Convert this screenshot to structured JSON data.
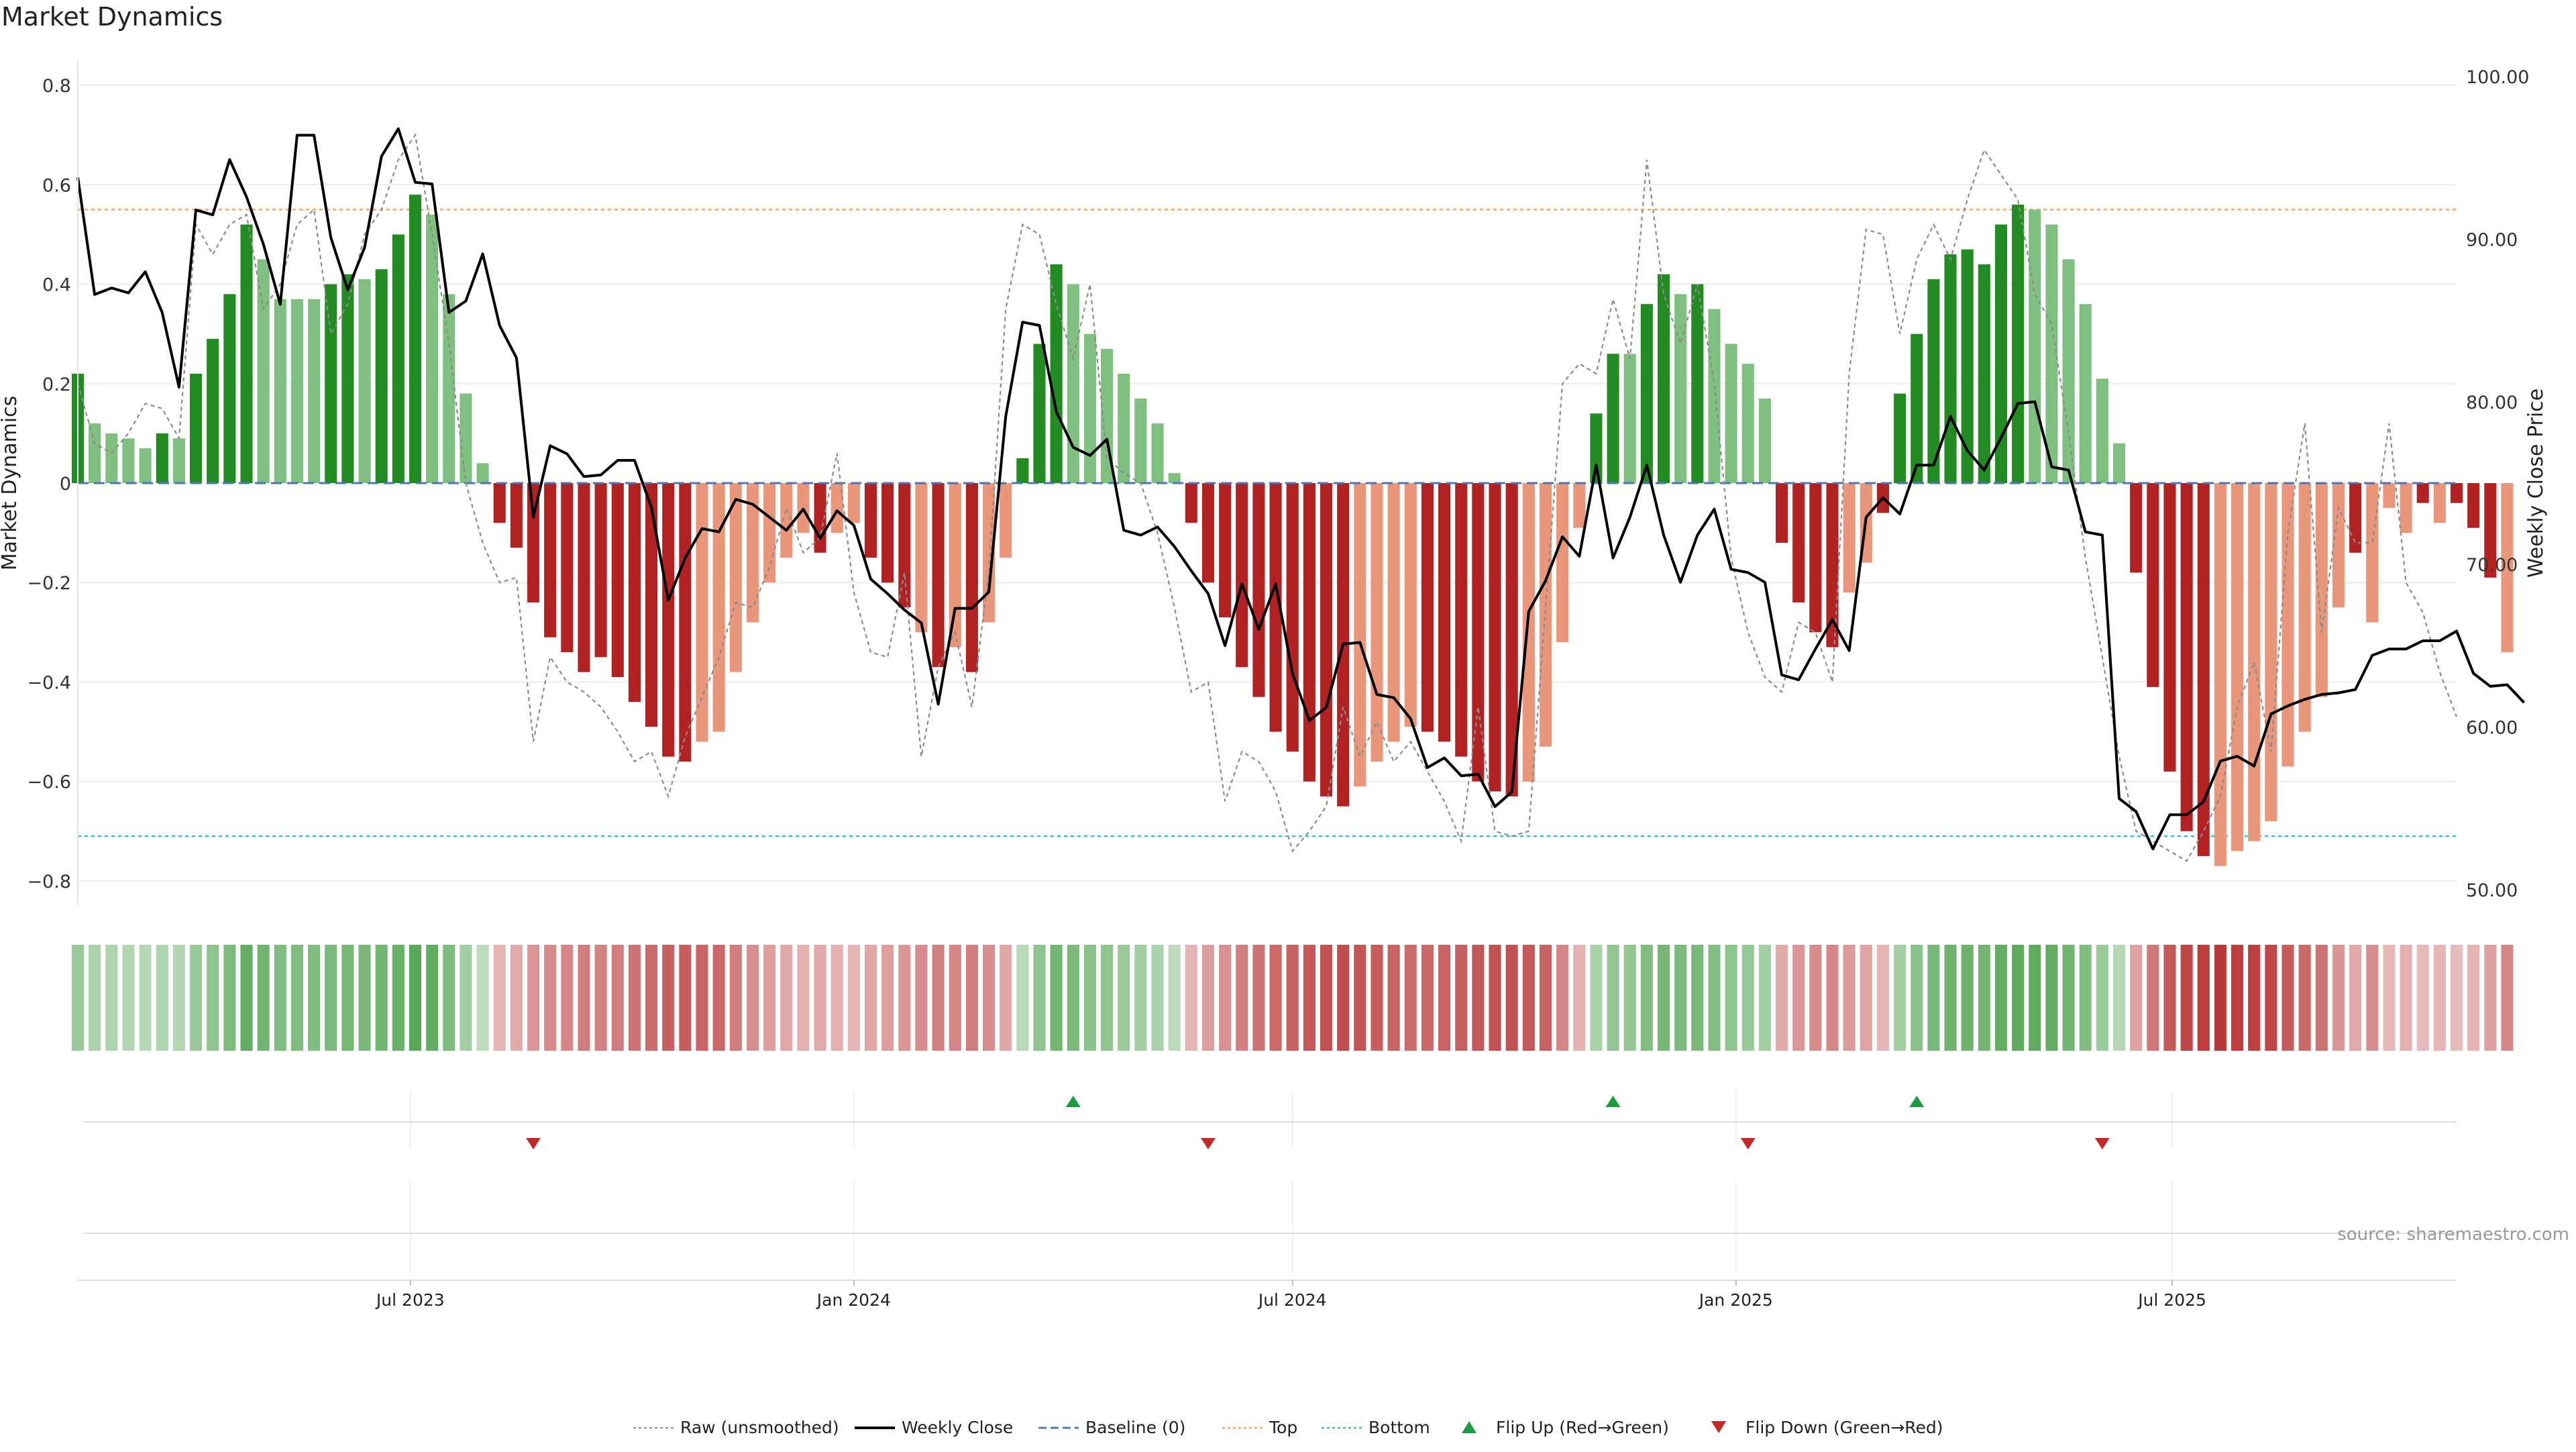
{
  "title": "Market Dynamics",
  "source_note": "source: sharemaestro.com",
  "colors": {
    "strong_green": "#228b22",
    "light_green": "#7fbf7f",
    "strong_red": "#b22222",
    "light_red": "#e9967a",
    "price_line": "#000000",
    "raw_line": "#8c8c8c",
    "baseline": "#4a77b4",
    "top_line": "#f0a868",
    "bottom_line": "#3fbfbf",
    "flip_up": "#1e9a40",
    "flip_down": "#c62828"
  },
  "chart_data": {
    "type": "bar",
    "ylabel": "Market Dynamics",
    "y2label": "Weekly Close Price",
    "ylim": [
      -0.85,
      0.85
    ],
    "y2lim": [
      49,
      101
    ],
    "yticks": [
      "0.8",
      "0.6",
      "0.4",
      "0.2",
      "0",
      "−0.2",
      "−0.4",
      "−0.6",
      "−0.8"
    ],
    "y2ticks": [
      "100.00",
      "90.00",
      "80.00",
      "70.00",
      "60.00",
      "50.00"
    ],
    "xlim": [
      "2023-02-13",
      "2025-10-27"
    ],
    "xticks": [
      {
        "date": "2023-07-01",
        "label": "Jul 2023"
      },
      {
        "date": "2024-01-01",
        "label": "Jan 2024"
      },
      {
        "date": "2024-07-01",
        "label": "Jul 2024"
      },
      {
        "date": "2025-01-01",
        "label": "Jan 2025"
      },
      {
        "date": "2025-07-01",
        "label": "Jul 2025"
      }
    ],
    "week_start": "2023-02-13",
    "top": 0.55,
    "bottom": -0.71,
    "baseline": 0,
    "series_names": {
      "raw": "Raw (unsmoothed)",
      "close": "Weekly Close",
      "baseline": "Baseline (0)",
      "top": "Top",
      "bottom": "Bottom",
      "flip_up": "Flip Up (Red→Green)",
      "flip_down": "Flip Down (Green→Red)"
    },
    "momentum": [
      0.22,
      0.12,
      0.1,
      0.09,
      0.07,
      0.1,
      0.09,
      0.22,
      0.29,
      0.38,
      0.52,
      0.45,
      0.37,
      0.37,
      0.37,
      0.4,
      0.42,
      0.41,
      0.43,
      0.5,
      0.58,
      0.54,
      0.38,
      0.18,
      0.04,
      -0.08,
      -0.13,
      -0.24,
      -0.31,
      -0.34,
      -0.38,
      -0.35,
      -0.39,
      -0.44,
      -0.49,
      -0.55,
      -0.56,
      -0.52,
      -0.5,
      -0.38,
      -0.28,
      -0.2,
      -0.15,
      -0.1,
      -0.14,
      -0.1,
      -0.08,
      -0.15,
      -0.2,
      -0.25,
      -0.3,
      -0.37,
      -0.33,
      -0.38,
      -0.28,
      -0.15,
      0.05,
      0.28,
      0.44,
      0.4,
      0.3,
      0.27,
      0.22,
      0.17,
      0.12,
      0.02,
      -0.08,
      -0.2,
      -0.27,
      -0.37,
      -0.43,
      -0.5,
      -0.54,
      -0.6,
      -0.63,
      -0.65,
      -0.61,
      -0.56,
      -0.52,
      -0.49,
      -0.5,
      -0.52,
      -0.55,
      -0.6,
      -0.62,
      -0.63,
      -0.6,
      -0.53,
      -0.32,
      -0.09,
      0.14,
      0.26,
      0.26,
      0.36,
      0.42,
      0.38,
      0.4,
      0.35,
      0.28,
      0.24,
      0.17,
      -0.12,
      -0.24,
      -0.3,
      -0.33,
      -0.22,
      -0.16,
      -0.06,
      0.18,
      0.3,
      0.41,
      0.46,
      0.47,
      0.44,
      0.52,
      0.56,
      0.55,
      0.52,
      0.45,
      0.36,
      0.21,
      0.08,
      -0.18,
      -0.41,
      -0.58,
      -0.7,
      -0.75,
      -0.77,
      -0.74,
      -0.72,
      -0.68,
      -0.57,
      -0.5,
      -0.43,
      -0.25,
      -0.14,
      -0.28,
      -0.05,
      -0.1,
      -0.04,
      -0.08,
      -0.04,
      -0.09,
      -0.19,
      -0.34
    ],
    "momentum_shade": [
      "strong",
      "light",
      "light",
      "light",
      "light",
      "strong",
      "light",
      "strong",
      "strong",
      "strong",
      "strong",
      "light",
      "light",
      "light",
      "light",
      "strong",
      "strong",
      "light",
      "strong",
      "strong",
      "strong",
      "light",
      "light",
      "light",
      "light",
      "strong",
      "strong",
      "strong",
      "strong",
      "strong",
      "strong",
      "strong",
      "strong",
      "strong",
      "strong",
      "strong",
      "strong",
      "light",
      "light",
      "light",
      "light",
      "light",
      "light",
      "light",
      "strong",
      "light",
      "light",
      "strong",
      "strong",
      "strong",
      "light",
      "strong",
      "light",
      "strong",
      "light",
      "light",
      "strong",
      "strong",
      "strong",
      "light",
      "light",
      "light",
      "light",
      "light",
      "light",
      "light",
      "strong",
      "strong",
      "strong",
      "strong",
      "strong",
      "strong",
      "strong",
      "strong",
      "strong",
      "strong",
      "light",
      "light",
      "light",
      "light",
      "strong",
      "strong",
      "strong",
      "strong",
      "strong",
      "strong",
      "light",
      "light",
      "light",
      "light",
      "strong",
      "strong",
      "light",
      "strong",
      "strong",
      "light",
      "strong",
      "light",
      "light",
      "light",
      "light",
      "strong",
      "strong",
      "strong",
      "strong",
      "light",
      "light",
      "strong",
      "strong",
      "strong",
      "strong",
      "strong",
      "strong",
      "strong",
      "strong",
      "strong",
      "light",
      "light",
      "light",
      "light",
      "light",
      "light",
      "strong",
      "strong",
      "strong",
      "strong",
      "strong",
      "light",
      "light",
      "light",
      "light",
      "light",
      "light",
      "light",
      "light",
      "strong",
      "light",
      "light",
      "light",
      "strong",
      "light",
      "strong",
      "strong",
      "strong"
    ],
    "raw": [
      0.2,
      0.08,
      0.06,
      0.1,
      0.16,
      0.15,
      0.09,
      0.52,
      0.46,
      0.52,
      0.54,
      0.35,
      0.4,
      0.52,
      0.55,
      0.3,
      0.36,
      0.5,
      0.55,
      0.65,
      0.7,
      0.5,
      0.28,
      0.0,
      -0.12,
      -0.2,
      -0.19,
      -0.52,
      -0.35,
      -0.4,
      -0.42,
      -0.45,
      -0.5,
      -0.56,
      -0.54,
      -0.63,
      -0.51,
      -0.43,
      -0.35,
      -0.24,
      -0.25,
      -0.17,
      -0.05,
      -0.14,
      -0.11,
      0.06,
      -0.22,
      -0.34,
      -0.35,
      -0.18,
      -0.55,
      -0.37,
      -0.3,
      -0.45,
      -0.18,
      0.35,
      0.52,
      0.5,
      0.36,
      0.25,
      0.4,
      0.05,
      0.02,
      0.0,
      -0.1,
      -0.25,
      -0.42,
      -0.4,
      -0.64,
      -0.54,
      -0.56,
      -0.62,
      -0.74,
      -0.7,
      -0.65,
      -0.45,
      -0.55,
      -0.48,
      -0.56,
      -0.52,
      -0.58,
      -0.64,
      -0.72,
      -0.45,
      -0.7,
      -0.71,
      -0.7,
      -0.25,
      0.2,
      0.24,
      0.22,
      0.37,
      0.25,
      0.65,
      0.38,
      0.28,
      0.4,
      0.2,
      -0.15,
      -0.3,
      -0.39,
      -0.42,
      -0.28,
      -0.3,
      -0.4,
      0.22,
      0.51,
      0.5,
      0.3,
      0.45,
      0.52,
      0.45,
      0.57,
      0.67,
      0.62,
      0.57,
      0.38,
      0.32,
      0.1,
      -0.15,
      -0.35,
      -0.55,
      -0.7,
      -0.72,
      -0.74,
      -0.76,
      -0.7,
      -0.63,
      -0.45,
      -0.36,
      -0.54,
      -0.1,
      0.12,
      -0.3,
      -0.05,
      -0.12,
      -0.12,
      0.12,
      -0.2,
      -0.26,
      -0.38,
      -0.47
    ],
    "close": [
      93.8,
      86.6,
      87.0,
      86.7,
      88.0,
      85.5,
      80.9,
      91.8,
      91.5,
      94.9,
      92.6,
      89.7,
      86.0,
      96.4,
      96.4,
      90.1,
      86.9,
      89.5,
      95.1,
      96.8,
      93.5,
      93.4,
      85.5,
      86.2,
      89.1,
      84.7,
      82.7,
      72.9,
      77.3,
      76.8,
      75.4,
      75.5,
      76.4,
      76.4,
      73.5,
      67.8,
      70.4,
      72.2,
      72.0,
      74.0,
      73.7,
      72.9,
      72.1,
      73.4,
      71.6,
      73.3,
      72.4,
      69.1,
      68.2,
      67.2,
      66.4,
      61.4,
      67.3,
      67.3,
      68.3,
      79.1,
      84.9,
      84.7,
      79.4,
      77.2,
      76.7,
      77.7,
      72.1,
      71.8,
      72.3,
      71.1,
      69.6,
      68.2,
      65.0,
      68.8,
      66.0,
      68.8,
      63.3,
      60.4,
      61.2,
      65.1,
      65.2,
      62.0,
      61.8,
      60.5,
      57.5,
      58.1,
      57.0,
      57.1,
      55.1,
      56.0,
      67.1,
      69.0,
      71.7,
      70.5,
      76.1,
      70.4,
      72.9,
      76.1,
      71.8,
      68.9,
      71.8,
      73.4,
      69.7,
      69.5,
      68.9,
      63.2,
      62.9,
      64.8,
      66.6,
      64.7,
      72.9,
      74.1,
      73.1,
      76.1,
      76.1,
      79.1,
      77.0,
      75.8,
      77.8,
      79.9,
      80.0,
      76.0,
      75.8,
      72.0,
      71.8,
      55.6,
      54.8,
      52.5,
      54.6,
      54.6,
      55.4,
      57.9,
      58.2,
      57.6,
      60.8,
      61.3,
      61.7,
      62.0,
      62.1,
      62.3,
      64.4,
      64.8,
      64.8,
      65.3,
      65.3,
      65.9,
      63.3,
      62.5,
      62.6,
      61.5
    ],
    "flip_up": [
      "2024-04-01",
      "2024-11-11",
      "2025-03-17"
    ],
    "flip_down": [
      "2023-08-21",
      "2024-05-27",
      "2025-01-06",
      "2025-06-02"
    ]
  }
}
